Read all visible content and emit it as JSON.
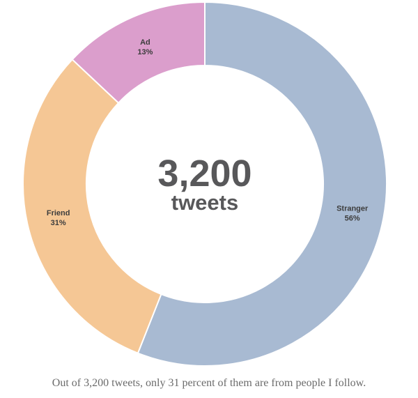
{
  "chart_data": {
    "type": "pie",
    "subtype": "donut",
    "title": "",
    "direction": "clockwise",
    "start_angle_deg": 0,
    "legend_position": "none",
    "labels_inside": true,
    "segments": [
      {
        "label": "Stranger",
        "value": 56,
        "pct_label": "56%",
        "color": "#a8bad2"
      },
      {
        "label": "Friend",
        "value": 31,
        "pct_label": "31%",
        "color": "#f5c795"
      },
      {
        "label": "Ad",
        "value": 13,
        "pct_label": "13%",
        "color": "#db9ecc"
      }
    ],
    "center_label": {
      "number": "3,200",
      "unit": "tweets"
    },
    "total_tweets": 3200
  },
  "caption": "Out of 3,200 tweets, only 31 percent of them are from people I follow.",
  "colors": {
    "background": "#ffffff",
    "center_text": "#58585a",
    "segment_label": "#3d3d3d",
    "caption_text": "#6b6b6b",
    "segment_divider": "#ffffff"
  }
}
